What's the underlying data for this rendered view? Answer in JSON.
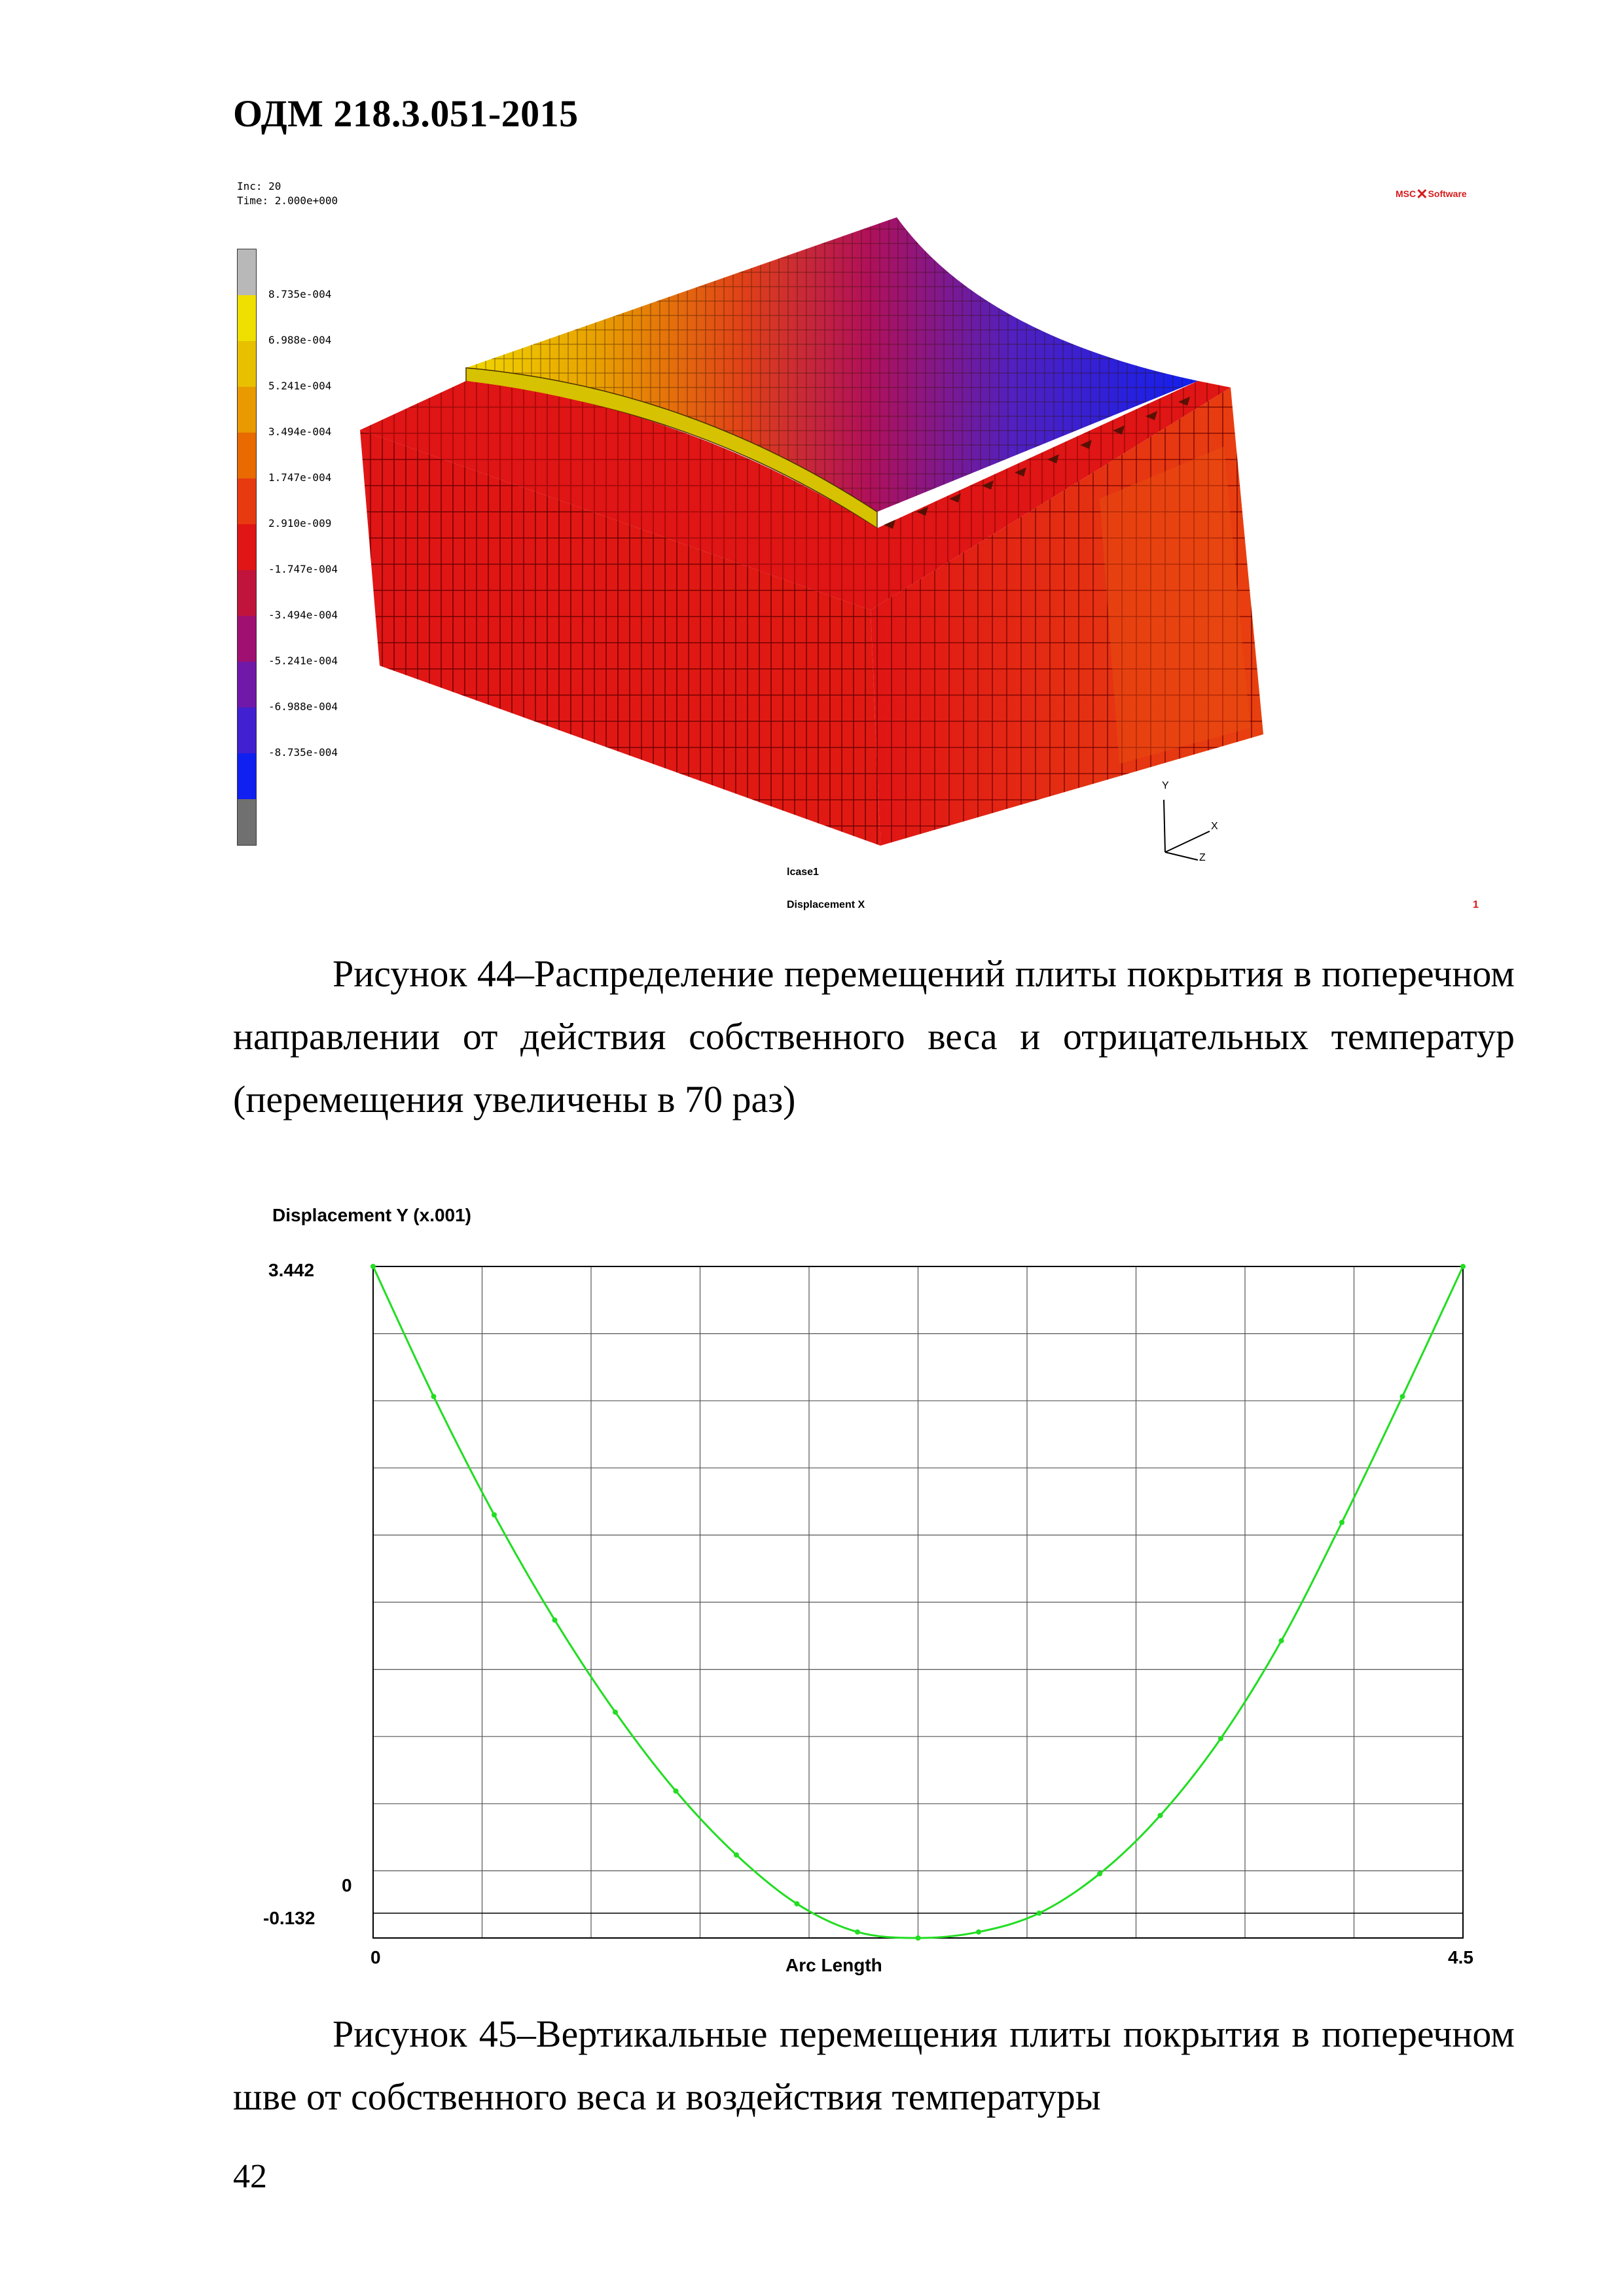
{
  "header": {
    "doc_code": "ОДМ 218.3.051-2015"
  },
  "figure44": {
    "inc": "Inc:  20",
    "time": "Time:  2.000e+000",
    "brand": "MSC",
    "brand_suffix": "Software",
    "legend": [
      {
        "label": "8.735e-004",
        "color": "#f0e000"
      },
      {
        "label": "6.988e-004",
        "color": "#e8c000"
      },
      {
        "label": "5.241e-004",
        "color": "#e89a00"
      },
      {
        "label": "3.494e-004",
        "color": "#e86a00"
      },
      {
        "label": "1.747e-004",
        "color": "#e83a10"
      },
      {
        "label": "2.910e-009",
        "color": "#e01515"
      },
      {
        "label": "-1.747e-004",
        "color": "#c0143c"
      },
      {
        "label": "-3.494e-004",
        "color": "#a01070"
      },
      {
        "label": "-5.241e-004",
        "color": "#7018a8"
      },
      {
        "label": "-6.988e-004",
        "color": "#4020d0"
      },
      {
        "label": "-8.735e-004",
        "color": "#1020f0"
      }
    ],
    "legend_top_color": "#b8b8b8",
    "legend_bottom_color": "#707070",
    "lcase": "lcase1",
    "result": "Displacement X",
    "result_index": "1",
    "axes": {
      "y": "Y",
      "x": "X",
      "z": "Z"
    }
  },
  "caption44": "Рисунок 44–Распределение перемещений плиты покрытия в поперечном направлении от действия собственного веса и отрицательных температур (перемещения увеличены в 70 раз)",
  "figure45": {
    "ylabel": "Displacement Y (x.001)",
    "xlabel": "Arc Length",
    "y_top_label": "3.442",
    "y_zero_label": "0",
    "y_bottom_label": "-0.132",
    "x_left_label": "0",
    "x_right_label": "4.5",
    "curve_color": "#22dd22"
  },
  "chart_data": {
    "type": "line",
    "xlabel": "Arc Length",
    "ylabel": "Displacement Y (x.001)",
    "xlim": [
      0,
      4.5
    ],
    "ylim": [
      -0.132,
      3.442
    ],
    "grid": true,
    "series": [
      {
        "x": [
          0,
          0.25,
          0.5,
          0.75,
          1.0,
          1.25,
          1.5,
          1.75,
          2.0,
          2.25,
          2.5,
          2.75,
          3.0,
          3.25,
          3.5,
          3.75,
          4.0,
          4.25,
          4.5
        ],
        "y": [
          3.442,
          2.75,
          2.12,
          1.56,
          1.07,
          0.65,
          0.31,
          0.05,
          -0.1,
          -0.132,
          -0.1,
          0.0,
          0.21,
          0.52,
          0.93,
          1.45,
          2.08,
          2.75,
          3.442
        ]
      }
    ]
  },
  "caption45": "Рисунок 45–Вертикальные перемещения плиты покрытия в поперечном шве от собственного веса и воздействия температуры",
  "page_number": "42"
}
